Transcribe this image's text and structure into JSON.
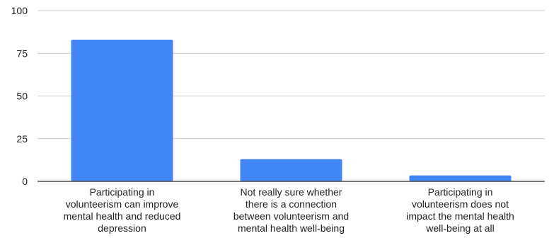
{
  "chart_data": {
    "type": "bar",
    "title": "",
    "xlabel": "",
    "ylabel": "",
    "ylim": [
      0,
      100
    ],
    "yticks": [
      "0",
      "25",
      "50",
      "75",
      "100"
    ],
    "grid": true,
    "legend": "none",
    "bar_color": "#4285f4",
    "categories": [
      [
        "Participating in",
        "volunteerism can improve",
        "mental health and reduced",
        "depression"
      ],
      [
        "Not really sure whether",
        "there is a connection",
        "between volunteerism and",
        "mental health well-being"
      ],
      [
        "Participating in",
        "volunteerism does not",
        "impact the mental health",
        "well-being at all"
      ]
    ],
    "values": [
      83,
      13,
      3.5
    ]
  }
}
